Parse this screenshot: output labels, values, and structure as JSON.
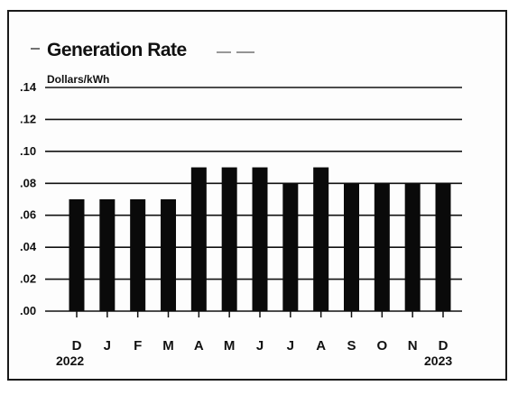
{
  "chart_data": {
    "type": "bar",
    "title": "Generation Rate",
    "ylabel": "Dollars/kWh",
    "xlabel": "",
    "categories": [
      "D",
      "J",
      "F",
      "M",
      "A",
      "M",
      "J",
      "J",
      "A",
      "S",
      "O",
      "N",
      "D"
    ],
    "values": [
      0.07,
      0.07,
      0.07,
      0.07,
      0.09,
      0.09,
      0.09,
      0.08,
      0.09,
      0.08,
      0.08,
      0.08,
      0.08
    ],
    "year_labels": {
      "start": "2022",
      "end": "2023"
    },
    "ylim": [
      0,
      0.14
    ],
    "yticks": [
      0,
      0.02,
      0.04,
      0.06,
      0.08,
      0.1,
      0.12,
      0.14
    ],
    "ytick_labels": [
      ".00",
      ".02",
      ".04",
      ".06",
      ".08",
      ".10",
      ".12",
      ".14"
    ],
    "grid": true,
    "legend": "none",
    "colors": {
      "bar": "#0a0a0a",
      "grid": "#111111"
    }
  }
}
